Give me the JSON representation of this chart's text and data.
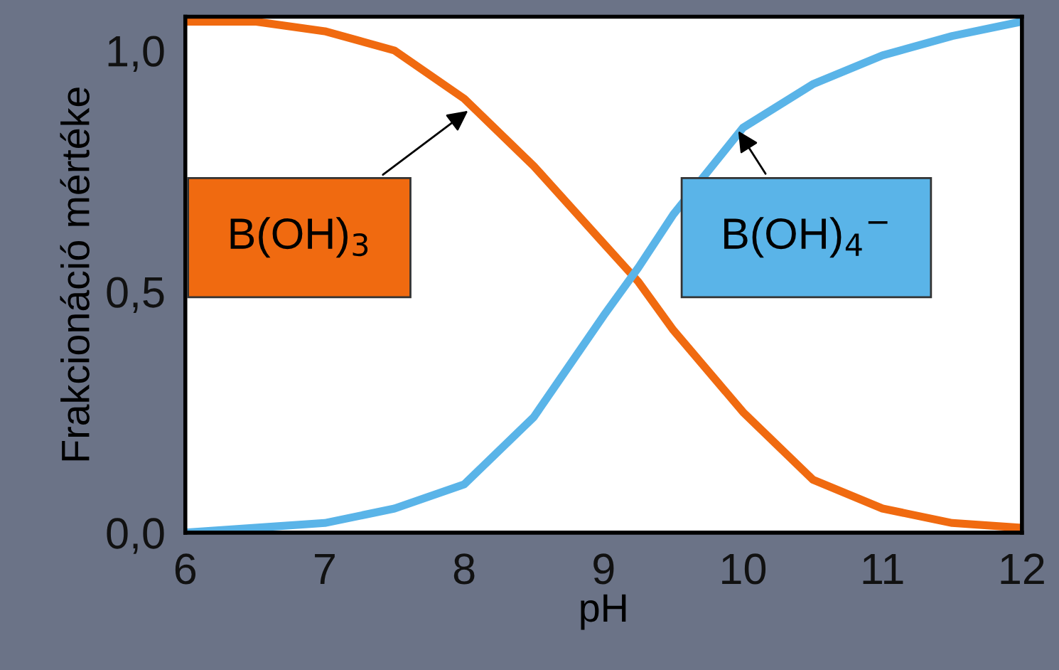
{
  "chart_data": {
    "type": "line",
    "xlabel": "pH",
    "ylabel": "Frakcionáció mértéke",
    "xlim": [
      6,
      12
    ],
    "ylim": [
      0,
      1.07
    ],
    "xticks": [
      6,
      7,
      8,
      9,
      10,
      11,
      12
    ],
    "yticks": [
      {
        "value": 0,
        "label": "0,0"
      },
      {
        "value": 0.5,
        "label": "0,5"
      },
      {
        "value": 1,
        "label": "1,0"
      }
    ],
    "x": [
      6,
      6.5,
      7,
      7.5,
      8,
      8.5,
      9,
      9.25,
      9.5,
      10,
      10.5,
      11,
      11.5,
      12
    ],
    "series": [
      {
        "color": "#f06a10",
        "values": [
          1.06,
          1.06,
          1.04,
          1.0,
          0.9,
          0.76,
          0.6,
          0.52,
          0.42,
          0.25,
          0.11,
          0.05,
          0.02,
          0.01
        ]
      },
      {
        "color": "#5ab4e8",
        "values": [
          0.0,
          0.01,
          0.02,
          0.05,
          0.1,
          0.24,
          0.45,
          0.55,
          0.66,
          0.84,
          0.93,
          0.99,
          1.03,
          1.06
        ]
      }
    ],
    "annotations": [
      {
        "text": "B(OH)$_{3}$",
        "x": 8.05,
        "y": 0.88
      },
      {
        "text": "B(OH)$_{4}$$^{−}$",
        "x": 9.95,
        "y": 0.84
      }
    ],
    "grid": false,
    "legend": false,
    "marker": "none",
    "line_style": "solid"
  }
}
